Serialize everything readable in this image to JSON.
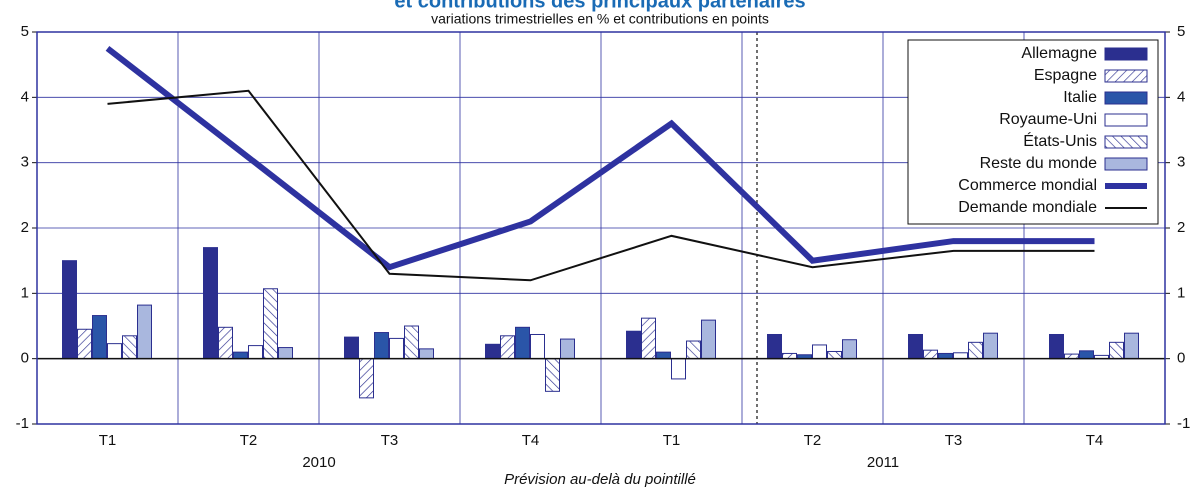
{
  "chart_data": {
    "type": "bar",
    "title": "et contributions des principaux partenaires",
    "subtitle": "variations trimestrielles en % et contributions en points",
    "categories": [
      "T1",
      "T2",
      "T3",
      "T4",
      "T1",
      "T2",
      "T3",
      "T4"
    ],
    "years": [
      "2010",
      "2011"
    ],
    "note": "Prévision au-delà du pointillé",
    "ylim": [
      -1,
      5
    ],
    "yticks": [
      -1,
      0,
      1,
      2,
      3,
      4,
      5
    ],
    "grid": true,
    "legend": "top-right",
    "series": [
      {
        "name": "Allemagne",
        "type": "bar",
        "color": "#2b2f8f",
        "pattern": "none",
        "values": [
          1.5,
          1.7,
          0.33,
          0.22,
          0.42,
          0.37,
          0.37,
          0.37
        ]
      },
      {
        "name": "Espagne",
        "type": "bar",
        "color": "#2b2f8f",
        "pattern": "hatch-right",
        "values": [
          0.45,
          0.48,
          -0.6,
          0.35,
          0.62,
          0.08,
          0.13,
          0.07
        ]
      },
      {
        "name": "Italie",
        "type": "bar",
        "color": "#2a55a8",
        "pattern": "none",
        "values": [
          0.66,
          0.1,
          0.4,
          0.48,
          0.1,
          0.06,
          0.08,
          0.12
        ]
      },
      {
        "name": "Royaume-Uni",
        "type": "bar",
        "color": "#ffffff",
        "pattern": "none",
        "values": [
          0.23,
          0.2,
          0.31,
          0.37,
          -0.31,
          0.21,
          0.09,
          0.05
        ]
      },
      {
        "name": "États-Unis",
        "type": "bar",
        "color": "#2b2f8f",
        "pattern": "hatch-left",
        "values": [
          0.35,
          1.07,
          0.5,
          -0.5,
          0.27,
          0.11,
          0.25,
          0.25
        ]
      },
      {
        "name": "Reste du monde",
        "type": "bar",
        "color": "#a9b7de",
        "pattern": "none",
        "values": [
          0.82,
          0.17,
          0.15,
          0.3,
          0.59,
          0.29,
          0.39,
          0.39
        ]
      },
      {
        "name": "Commerce mondial",
        "type": "line",
        "color": "#2e32a0",
        "values": [
          4.75,
          3.08,
          1.4,
          2.1,
          3.6,
          1.5,
          1.8,
          1.8
        ]
      },
      {
        "name": "Demande mondiale",
        "type": "line",
        "color": "#111111",
        "values": [
          3.9,
          4.1,
          1.3,
          1.2,
          1.88,
          1.4,
          1.65,
          1.65
        ]
      }
    ]
  }
}
